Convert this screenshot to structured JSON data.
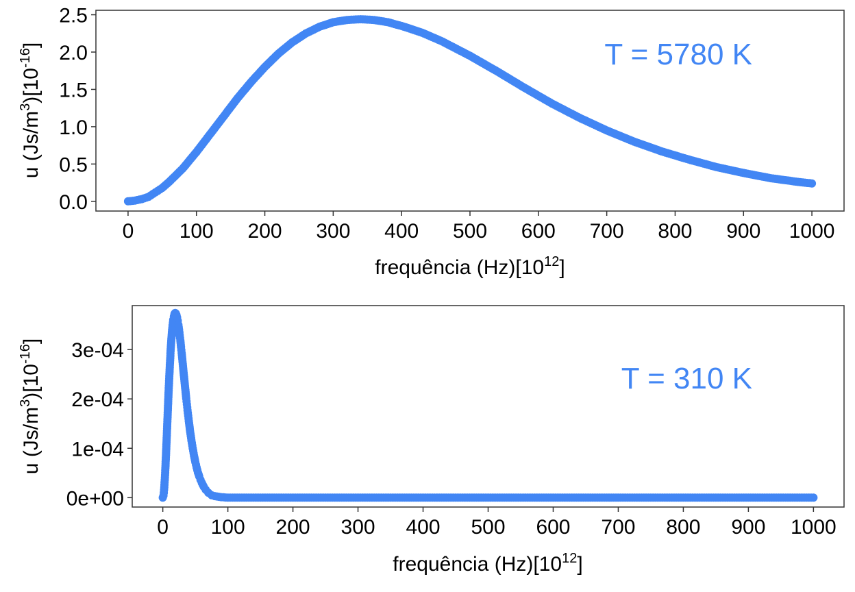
{
  "colors": {
    "series": "#4286F4",
    "axis": "#333333",
    "background": "#FFFFFF"
  },
  "chart_data": [
    {
      "type": "scatter",
      "annotation": "T = 5780 K",
      "xlabel": {
        "text": "frequência (Hz)[10",
        "sup": "12",
        "close": "]"
      },
      "ylabel": {
        "text": "u (Js/m",
        "sup1": "3",
        "mid": ")[10",
        "sup2": "-16",
        "close": "]"
      },
      "xlim": [
        -47,
        1047
      ],
      "ylim": [
        -0.13,
        2.56
      ],
      "xticks": [
        {
          "value": 0,
          "label": "0"
        },
        {
          "value": 100,
          "label": "100"
        },
        {
          "value": 200,
          "label": "200"
        },
        {
          "value": 300,
          "label": "300"
        },
        {
          "value": 400,
          "label": "400"
        },
        {
          "value": 500,
          "label": "500"
        },
        {
          "value": 600,
          "label": "600"
        },
        {
          "value": 700,
          "label": "700"
        },
        {
          "value": 800,
          "label": "800"
        },
        {
          "value": 900,
          "label": "900"
        },
        {
          "value": 1000,
          "label": "1000"
        }
      ],
      "yticks": [
        {
          "value": 0,
          "label": "0.0"
        },
        {
          "value": 0.5,
          "label": "0.5"
        },
        {
          "value": 1.0,
          "label": "1.0"
        },
        {
          "value": 1.5,
          "label": "1.5"
        },
        {
          "value": 2.0,
          "label": "2.0"
        },
        {
          "value": 2.5,
          "label": "2.5"
        }
      ],
      "grid": false,
      "series": [
        {
          "x": [
            0,
            10,
            20,
            30,
            40,
            50,
            60,
            70,
            80,
            100,
            120,
            140,
            160,
            180,
            200,
            220,
            240,
            260,
            280,
            300,
            320,
            340,
            360,
            380,
            400,
            430,
            460,
            500,
            540,
            580,
            620,
            660,
            700,
            740,
            780,
            820,
            860,
            900,
            940,
            980,
            1000
          ],
          "y": [
            0.0,
            0.01,
            0.03,
            0.06,
            0.12,
            0.18,
            0.26,
            0.35,
            0.44,
            0.66,
            0.9,
            1.14,
            1.38,
            1.6,
            1.8,
            1.98,
            2.13,
            2.25,
            2.34,
            2.4,
            2.43,
            2.44,
            2.43,
            2.4,
            2.35,
            2.26,
            2.14,
            1.95,
            1.74,
            1.52,
            1.31,
            1.12,
            0.95,
            0.8,
            0.67,
            0.56,
            0.46,
            0.38,
            0.31,
            0.26,
            0.24
          ]
        }
      ]
    },
    {
      "type": "scatter",
      "annotation": "T = 310 K",
      "xlabel": {
        "text": "frequência (Hz)[10",
        "sup": "12",
        "close": "]"
      },
      "ylabel": {
        "text": "u (Js/m",
        "sup1": "3",
        "mid": ")[10",
        "sup2": "-16",
        "close": "]"
      },
      "xlim": [
        -47,
        1047
      ],
      "ylim": [
        -1.9e-05,
        0.000389
      ],
      "xticks": [
        {
          "value": 0,
          "label": "0"
        },
        {
          "value": 100,
          "label": "100"
        },
        {
          "value": 200,
          "label": "200"
        },
        {
          "value": 300,
          "label": "300"
        },
        {
          "value": 400,
          "label": "400"
        },
        {
          "value": 500,
          "label": "500"
        },
        {
          "value": 600,
          "label": "600"
        },
        {
          "value": 700,
          "label": "700"
        },
        {
          "value": 800,
          "label": "800"
        },
        {
          "value": 900,
          "label": "900"
        },
        {
          "value": 1000,
          "label": "1000"
        }
      ],
      "yticks": [
        {
          "value": 0,
          "label": "0e+00"
        },
        {
          "value": 0.0001,
          "label": "1e-04"
        },
        {
          "value": 0.0002,
          "label": "2e-04"
        },
        {
          "value": 0.0003,
          "label": "3e-04"
        }
      ],
      "grid": false,
      "series": [
        {
          "x": [
            0,
            1,
            2,
            3,
            4,
            5,
            6,
            7,
            8,
            9,
            10,
            11,
            12,
            13,
            14,
            15,
            16,
            17,
            18,
            19,
            20,
            21,
            22,
            23,
            24,
            25,
            26,
            27,
            28,
            29,
            30,
            31,
            32,
            33,
            34,
            35,
            36,
            37,
            38,
            39,
            40,
            42,
            44,
            46,
            48,
            50,
            52,
            54,
            56,
            58,
            60,
            63,
            66,
            70,
            75,
            80,
            90,
            100,
            125,
            150,
            175,
            200,
            225,
            250,
            275,
            300,
            325,
            350,
            375,
            400,
            425,
            450,
            475,
            500,
            525,
            550,
            575,
            600,
            625,
            650,
            675,
            700,
            725,
            750,
            775,
            800,
            825,
            850,
            875,
            900,
            925,
            950,
            975,
            1000
          ],
          "y": [
            0.0,
            4e-06,
            1.6e-05,
            3.6e-05,
            6e-05,
            9e-05,
            0.000121,
            0.000154,
            0.000186,
            0.000217,
            0.000246,
            0.000273,
            0.000297,
            0.000318,
            0.000335,
            0.000349,
            0.00036,
            0.000367,
            0.000372,
            0.000374,
            0.000373,
            0.00037,
            0.000365,
            0.000358,
            0.00035,
            0.00034,
            0.000329,
            0.000318,
            0.000305,
            0.000293,
            0.00028,
            0.000266,
            0.000253,
            0.00024,
            0.000227,
            0.000214,
            0.000201,
            0.000189,
            0.000177,
            0.000166,
            0.000155,
            0.000134,
            0.000116,
            0.0001,
            8.5e-05,
            7.2e-05,
            6.1e-05,
            5.1e-05,
            4.3e-05,
            3.6e-05,
            3e-05,
            2.2e-05,
            1.6e-05,
            1e-05,
            5e-06,
            3e-06,
            1e-06,
            0.0,
            0.0,
            0.0,
            0.0,
            0.0,
            0.0,
            0.0,
            0.0,
            0.0,
            0.0,
            0.0,
            0.0,
            0.0,
            0.0,
            0.0,
            0.0,
            0.0,
            0.0,
            0.0,
            0.0,
            0.0,
            0.0,
            0.0,
            0.0,
            0.0,
            0.0,
            0.0,
            0.0,
            0.0,
            0.0,
            0.0,
            0.0,
            0.0,
            0.0,
            0.0,
            0.0,
            0.0
          ]
        }
      ]
    }
  ]
}
